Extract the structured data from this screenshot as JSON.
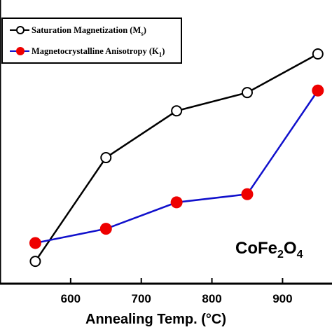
{
  "chart_data": {
    "type": "line",
    "title": "",
    "xlabel": "Annealing Temp.",
    "xlabel_unit": "°C",
    "ylabel": "",
    "x": [
      550,
      650,
      750,
      850,
      950
    ],
    "xticks": [
      600,
      700,
      800,
      900
    ],
    "xlim": [
      500,
      970
    ],
    "ylim": [
      0,
      1
    ],
    "grid": false,
    "legend_position": "top-left",
    "series": [
      {
        "name": "Saturation Magnetization",
        "symbol_main": "M",
        "symbol_sub": "s",
        "values": [
          0.11,
          0.62,
          0.85,
          0.94,
          1.13
        ],
        "color": "#000000",
        "marker": "open-circle"
      },
      {
        "name": "Magnetocrystalline Anisotropy",
        "symbol_main": "K",
        "symbol_sub": "1",
        "values": [
          0.2,
          0.27,
          0.4,
          0.44,
          0.95
        ],
        "color": "#1010cc",
        "marker_color": "#ee0000",
        "marker": "filled-circle"
      }
    ],
    "annotation": {
      "parts": [
        "CoFe",
        "2",
        "O",
        "4"
      ]
    }
  }
}
